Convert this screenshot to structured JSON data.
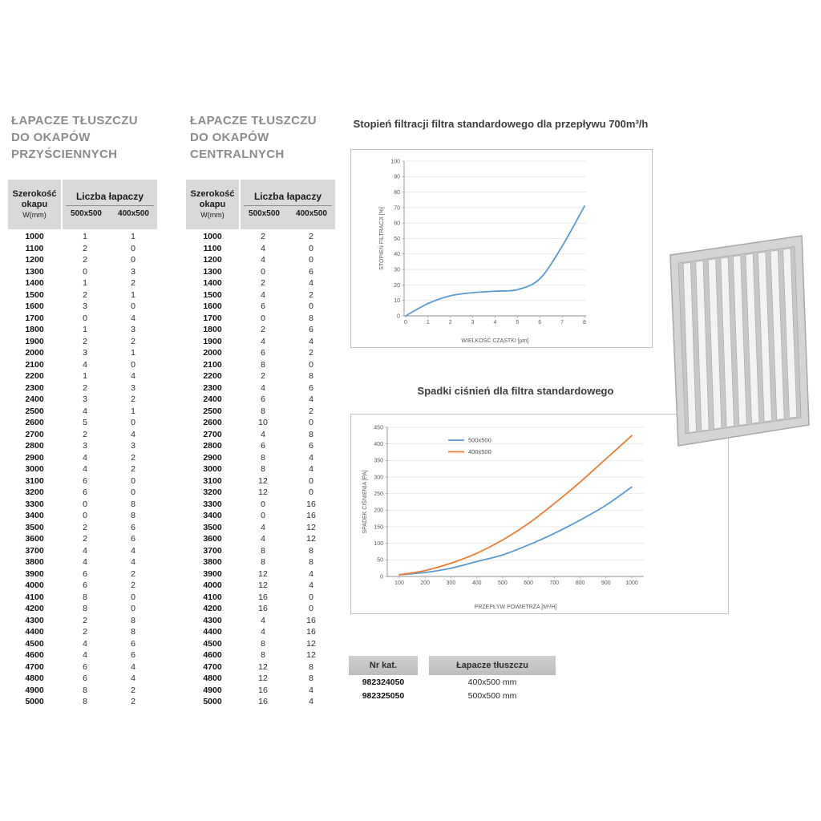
{
  "tables": {
    "wall": {
      "title_lines": [
        "ŁAPACZE TŁUSZCZU",
        "DO OKAPÓW",
        "PRZYŚCIENNYCH"
      ],
      "header": {
        "width_label": "Szerokość okapu",
        "width_unit": "W(mm)",
        "count_label": "Liczba łapaczy",
        "sub_columns": [
          "500x500",
          "400x500"
        ]
      },
      "rows": [
        [
          1000,
          1,
          1
        ],
        [
          1100,
          2,
          0
        ],
        [
          1200,
          2,
          0
        ],
        [
          1300,
          0,
          3
        ],
        [
          1400,
          1,
          2
        ],
        [
          1500,
          2,
          1
        ],
        [
          1600,
          3,
          0
        ],
        [
          1700,
          0,
          4
        ],
        [
          1800,
          1,
          3
        ],
        [
          1900,
          2,
          2
        ],
        [
          2000,
          3,
          1
        ],
        [
          2100,
          4,
          0
        ],
        [
          2200,
          1,
          4
        ],
        [
          2300,
          2,
          3
        ],
        [
          2400,
          3,
          2
        ],
        [
          2500,
          4,
          1
        ],
        [
          2600,
          5,
          0
        ],
        [
          2700,
          2,
          4
        ],
        [
          2800,
          3,
          3
        ],
        [
          2900,
          4,
          2
        ],
        [
          3000,
          4,
          2
        ],
        [
          3100,
          6,
          0
        ],
        [
          3200,
          6,
          0
        ],
        [
          3300,
          0,
          8
        ],
        [
          3400,
          0,
          8
        ],
        [
          3500,
          2,
          6
        ],
        [
          3600,
          2,
          6
        ],
        [
          3700,
          4,
          4
        ],
        [
          3800,
          4,
          4
        ],
        [
          3900,
          6,
          2
        ],
        [
          4000,
          6,
          2
        ],
        [
          4100,
          8,
          0
        ],
        [
          4200,
          8,
          0
        ],
        [
          4300,
          2,
          8
        ],
        [
          4400,
          2,
          8
        ],
        [
          4500,
          4,
          6
        ],
        [
          4600,
          4,
          6
        ],
        [
          4700,
          6,
          4
        ],
        [
          4800,
          6,
          4
        ],
        [
          4900,
          8,
          2
        ],
        [
          5000,
          8,
          2
        ]
      ]
    },
    "central": {
      "title_lines": [
        "ŁAPACZE TŁUSZCZU",
        "DO OKAPÓW",
        "CENTRALNYCH"
      ],
      "header": {
        "width_label": "Szerokość okapu",
        "width_unit": "W(mm)",
        "count_label": "Liczba łapaczy",
        "sub_columns": [
          "500x500",
          "400x500"
        ]
      },
      "rows": [
        [
          1000,
          2,
          2
        ],
        [
          1100,
          4,
          0
        ],
        [
          1200,
          4,
          0
        ],
        [
          1300,
          0,
          6
        ],
        [
          1400,
          2,
          4
        ],
        [
          1500,
          4,
          2
        ],
        [
          1600,
          6,
          0
        ],
        [
          1700,
          0,
          8
        ],
        [
          1800,
          2,
          6
        ],
        [
          1900,
          4,
          4
        ],
        [
          2000,
          6,
          2
        ],
        [
          2100,
          8,
          0
        ],
        [
          2200,
          2,
          8
        ],
        [
          2300,
          4,
          6
        ],
        [
          2400,
          6,
          4
        ],
        [
          2500,
          8,
          2
        ],
        [
          2600,
          10,
          0
        ],
        [
          2700,
          4,
          8
        ],
        [
          2800,
          6,
          6
        ],
        [
          2900,
          8,
          4
        ],
        [
          3000,
          8,
          4
        ],
        [
          3100,
          12,
          0
        ],
        [
          3200,
          12,
          0
        ],
        [
          3300,
          0,
          16
        ],
        [
          3400,
          0,
          16
        ],
        [
          3500,
          4,
          12
        ],
        [
          3600,
          4,
          12
        ],
        [
          3700,
          8,
          8
        ],
        [
          3800,
          8,
          8
        ],
        [
          3900,
          12,
          4
        ],
        [
          4000,
          12,
          4
        ],
        [
          4100,
          16,
          0
        ],
        [
          4200,
          16,
          0
        ],
        [
          4300,
          4,
          16
        ],
        [
          4400,
          4,
          16
        ],
        [
          4500,
          8,
          12
        ],
        [
          4600,
          8,
          12
        ],
        [
          4700,
          12,
          8
        ],
        [
          4800,
          12,
          8
        ],
        [
          4900,
          16,
          4
        ],
        [
          5000,
          16,
          4
        ]
      ]
    }
  },
  "chart_data": [
    {
      "type": "line",
      "title": "Stopień filtracji filtra standardowego dla przepływu 700m³/h",
      "xlabel": "WIELKOŚĆ CZĄSTKI [μm]",
      "ylabel": "STOPIEŃ FILTRACJI [%]",
      "x": [
        0,
        1,
        2,
        3,
        4,
        5,
        6,
        7,
        8
      ],
      "series": [
        {
          "name": "filtracja",
          "color": "#5b9bd5",
          "values": [
            0,
            8,
            13,
            15,
            16,
            17,
            24,
            45,
            71
          ]
        }
      ],
      "xlim": [
        0,
        8
      ],
      "ylim": [
        0,
        100
      ],
      "xtick": 1,
      "ytick": 10,
      "grid": "horizontal",
      "legend": false
    },
    {
      "type": "line",
      "title": "Spadki ciśnień dla filtra standardowego",
      "xlabel": "PRZEPŁYW POWIETRZA [M³/H]",
      "ylabel": "SPADEK CIŚNIENIA [PA]",
      "x": [
        100,
        200,
        300,
        400,
        500,
        600,
        700,
        800,
        900,
        1000
      ],
      "series": [
        {
          "name": "500x500",
          "color": "#5b9bd5",
          "values": [
            5,
            12,
            25,
            45,
            65,
            95,
            130,
            170,
            215,
            270
          ]
        },
        {
          "name": "400x500",
          "color": "#ed7d31",
          "values": [
            5,
            18,
            40,
            70,
            110,
            160,
            220,
            285,
            355,
            425
          ]
        }
      ],
      "xlim": [
        100,
        1000
      ],
      "ylim": [
        0,
        450
      ],
      "xtick": 100,
      "ytick": 50,
      "grid": "horizontal",
      "legend": true,
      "legend_position": "top-center"
    }
  ],
  "catalog": {
    "headers": [
      "Nr kat.",
      "Łapacze tłuszczu"
    ],
    "rows": [
      [
        "982324050",
        "400x500 mm"
      ],
      [
        "982325050",
        "500x500 mm"
      ]
    ]
  },
  "images": {
    "filter_photo": "grease-filter-photo"
  }
}
